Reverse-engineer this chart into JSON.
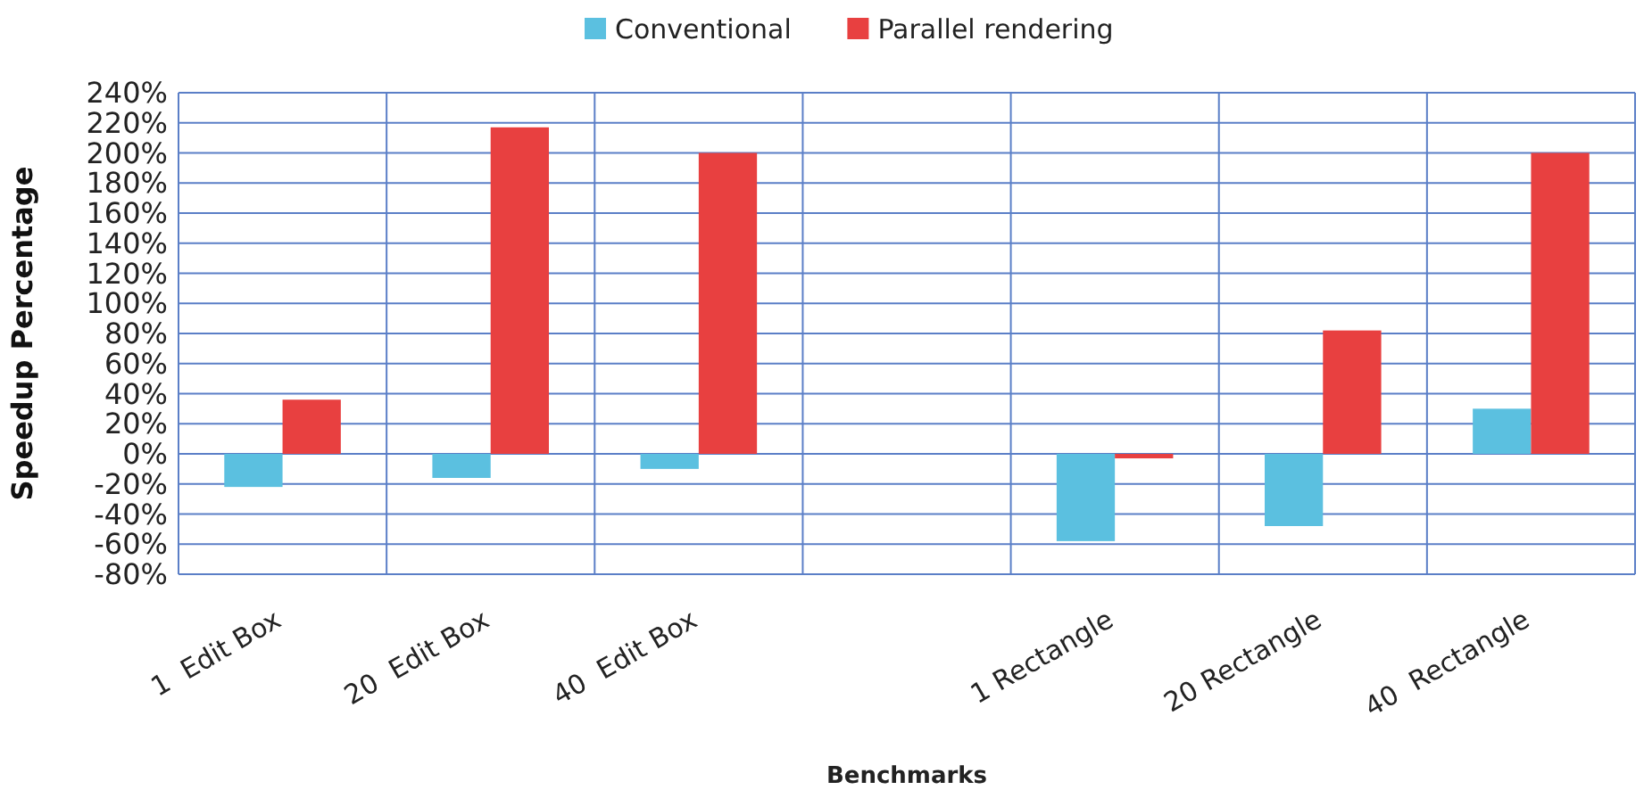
{
  "chart_data": {
    "type": "bar",
    "xlabel": "Benchmarks",
    "ylabel": "Speedup Percentage",
    "categories": [
      "1  Edit Box",
      "20  Edit Box",
      "40  Edit Box",
      null,
      "1 Rectangle",
      "20 Rectangle",
      "40  Rectangle"
    ],
    "series": [
      {
        "name": "Conventional",
        "color": "#5bc0e0",
        "values": [
          -22,
          -16,
          -10,
          null,
          -58,
          -48,
          30
        ]
      },
      {
        "name": "Parallel rendering",
        "color": "#e84040",
        "values": [
          36,
          217,
          200,
          null,
          -3,
          82,
          200
        ]
      }
    ],
    "ylim": [
      -80,
      240
    ],
    "yticks": [
      {
        "value": -80,
        "label": "-80%"
      },
      {
        "value": -60,
        "label": "-60%"
      },
      {
        "value": -40,
        "label": "-40%"
      },
      {
        "value": -20,
        "label": "-20%"
      },
      {
        "value": 0,
        "label": "0%"
      },
      {
        "value": 20,
        "label": "20%"
      },
      {
        "value": 40,
        "label": "40%"
      },
      {
        "value": 60,
        "label": "60%"
      },
      {
        "value": 80,
        "label": "80%"
      },
      {
        "value": 100,
        "label": "100%"
      },
      {
        "value": 120,
        "label": "120%"
      },
      {
        "value": 140,
        "label": "140%"
      },
      {
        "value": 160,
        "label": "160%"
      },
      {
        "value": 180,
        "label": "180%"
      },
      {
        "value": 200,
        "label": "200%"
      },
      {
        "value": 220,
        "label": "220%"
      },
      {
        "value": 240,
        "label": "240%"
      }
    ],
    "grid": true,
    "legend": "top"
  }
}
